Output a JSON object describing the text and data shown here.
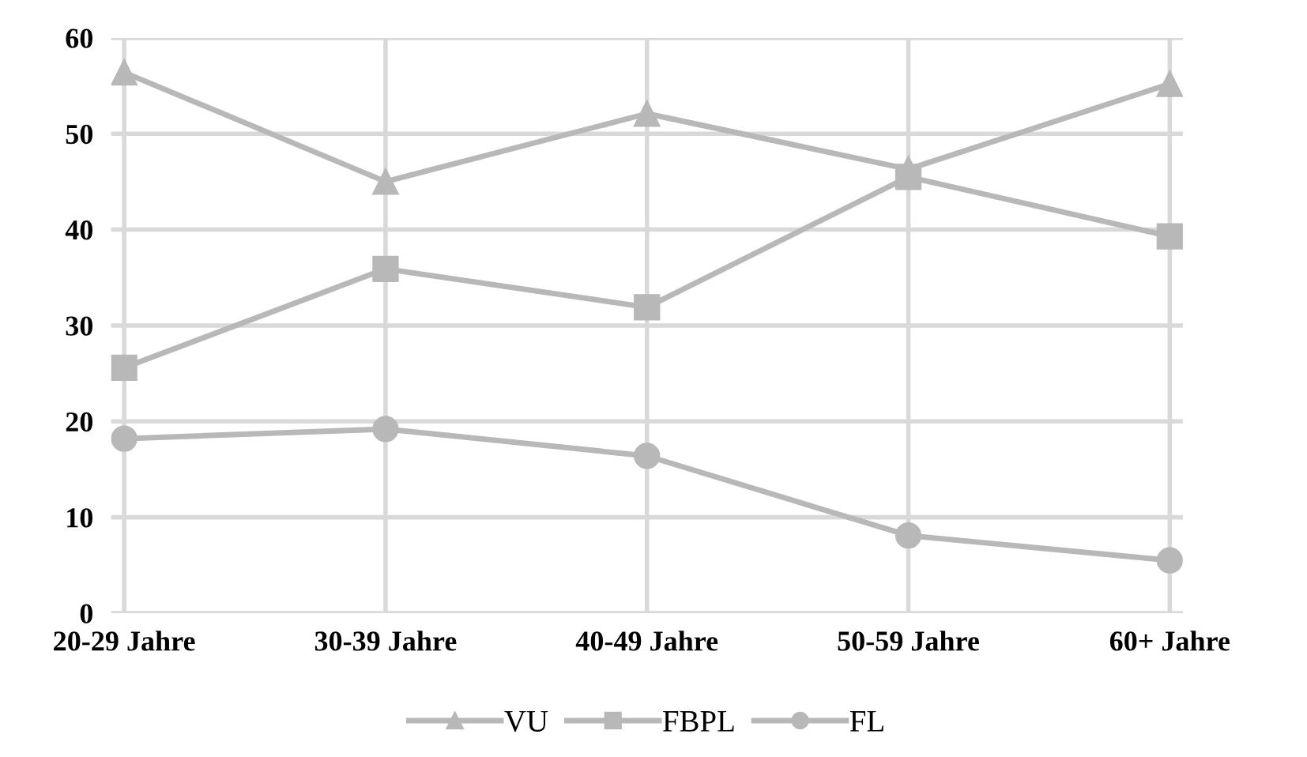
{
  "chart_data": {
    "type": "line",
    "categories": [
      "20-29 Jahre",
      "30-39 Jahre",
      "40-49 Jahre",
      "50-59 Jahre",
      "60+ Jahre"
    ],
    "series": [
      {
        "name": "VU",
        "color": "#b8b8b8",
        "marker": "triangle",
        "values": [
          56.4,
          45.0,
          52.1,
          46.3,
          55.2
        ]
      },
      {
        "name": "FBPL",
        "color": "#b8b8b8",
        "marker": "square",
        "values": [
          25.6,
          35.9,
          31.9,
          45.5,
          39.3
        ]
      },
      {
        "name": "FL",
        "color": "#b8b8b8",
        "marker": "circle",
        "values": [
          18.2,
          19.2,
          16.4,
          8.1,
          5.5
        ]
      }
    ],
    "ylim": [
      0,
      60
    ],
    "yticks": [
      0,
      10,
      20,
      30,
      40,
      50,
      60
    ],
    "grid": true,
    "legend": "bottom",
    "line_style": "solid"
  }
}
